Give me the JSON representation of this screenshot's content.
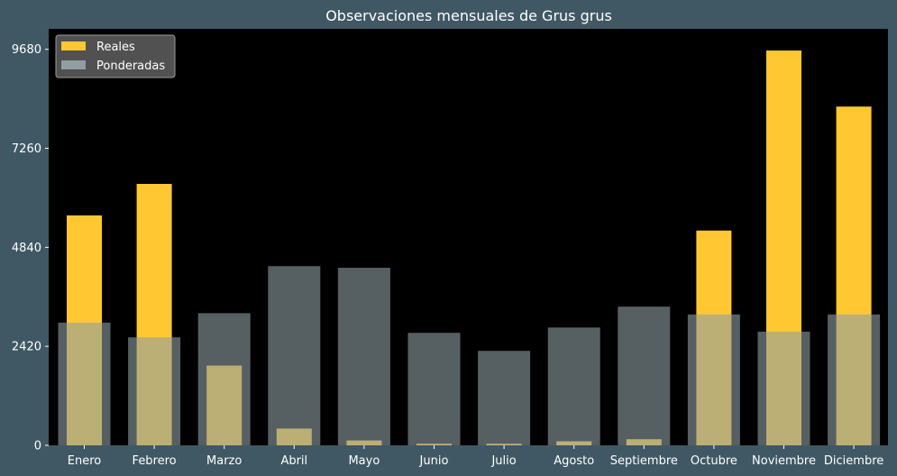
{
  "chart_data": {
    "type": "bar",
    "title": "Observaciones mensuales de Grus grus",
    "xlabel": "",
    "ylabel": "",
    "categories": [
      "Enero",
      "Febrero",
      "Marzo",
      "Abril",
      "Mayo",
      "Junio",
      "Julio",
      "Agosto",
      "Septiembre",
      "Octubre",
      "Noviembre",
      "Diciembre"
    ],
    "series": [
      {
        "name": "Reales",
        "color": "#ffc832",
        "values": [
          5620,
          6390,
          1950,
          410,
          120,
          40,
          40,
          100,
          150,
          5250,
          9650,
          8280
        ]
      },
      {
        "name": "Ponderadas",
        "color": "#8f9ea1",
        "values": [
          3000,
          2640,
          3230,
          4380,
          4340,
          2750,
          2310,
          2880,
          3390,
          3200,
          2780,
          3200
        ]
      }
    ],
    "yticks": [
      0,
      2420,
      4840,
      7260,
      9680
    ],
    "ylim": [
      0,
      10180
    ],
    "legend_position": "top-left",
    "grid": false,
    "plot_background": "#000000",
    "figure_background": "#3f5864"
  }
}
